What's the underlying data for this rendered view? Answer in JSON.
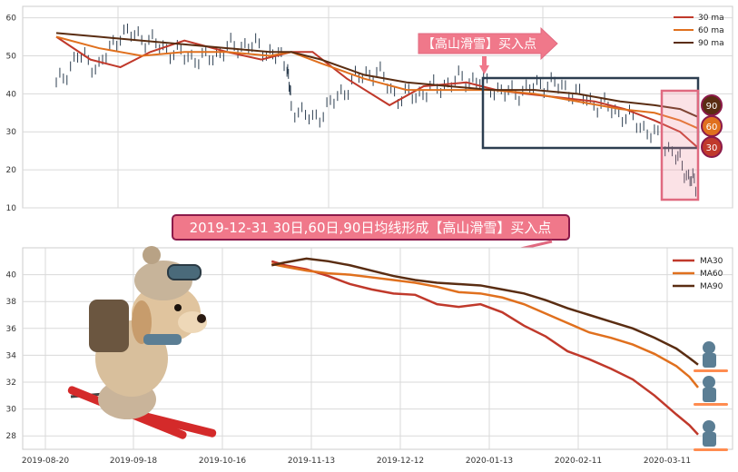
{
  "colors": {
    "ma30": "#c0392b",
    "ma60": "#e0701e",
    "ma90": "#5a2d12",
    "price": "#2c3e50",
    "callout_fill": "#f0788a",
    "callout_border": "#8b1a4a",
    "highlight_box": "#2c3e50",
    "highlight_zone": "#f08a9b",
    "grid": "#d9d9d9"
  },
  "top_panel": {
    "callout_label": "【高山滑雪】买入点",
    "legend": [
      "30 ma",
      "60 ma",
      "90 ma"
    ],
    "badge_labels": [
      "90",
      "60",
      "30"
    ],
    "y_ticks": [
      "10",
      "20",
      "30",
      "40",
      "50",
      "60"
    ]
  },
  "banner": {
    "text": "2019-12-31 30日,60日,90日均线形成【高山滑雪】买入点"
  },
  "bottom_panel": {
    "legend": [
      "MA30",
      "MA60",
      "MA90"
    ],
    "y_ticks": [
      "28",
      "30",
      "32",
      "34",
      "36",
      "38",
      "40"
    ],
    "x_ticks": [
      "2019-08-20",
      "2019-09-18",
      "2019-10-16",
      "2019-11-13",
      "2019-12-12",
      "2020-01-13",
      "2020-02-11",
      "2020-03-11"
    ]
  },
  "chart_data": [
    {
      "type": "line",
      "panel": "top",
      "ylim": [
        10,
        63
      ],
      "x_index_range": [
        0,
        150
      ],
      "series": [
        {
          "name": "30 ma",
          "x": [
            0,
            8,
            15,
            22,
            30,
            40,
            48,
            55,
            60,
            68,
            78,
            86,
            96,
            103,
            110,
            118,
            126,
            133,
            140,
            146,
            150
          ],
          "y": [
            55,
            49,
            47,
            51,
            54,
            51,
            49,
            51,
            51,
            44,
            37,
            42,
            43,
            41,
            40,
            39,
            38,
            36,
            33,
            30,
            26
          ]
        },
        {
          "name": "60 ma",
          "x": [
            0,
            10,
            20,
            30,
            40,
            50,
            55,
            62,
            72,
            82,
            92,
            102,
            112,
            122,
            132,
            140,
            146,
            150
          ],
          "y": [
            55,
            52,
            50,
            51,
            51,
            50,
            51,
            48,
            44,
            41,
            41,
            41,
            40,
            38,
            36,
            35,
            33,
            31
          ]
        },
        {
          "name": "90 ma",
          "x": [
            0,
            10,
            20,
            30,
            40,
            50,
            55,
            62,
            72,
            82,
            92,
            102,
            112,
            122,
            132,
            140,
            146,
            150
          ],
          "y": [
            56,
            55,
            54,
            53,
            52,
            51,
            51,
            49,
            45,
            43,
            42,
            41,
            41,
            40,
            38,
            37,
            36,
            34
          ]
        },
        {
          "name": "price",
          "x": [
            0,
            5,
            10,
            15,
            20,
            25,
            30,
            35,
            40,
            45,
            50,
            54,
            55,
            60,
            65,
            70,
            75,
            80,
            85,
            90,
            95,
            100,
            105,
            110,
            115,
            120,
            125,
            130,
            135,
            140,
            145,
            148,
            150
          ],
          "y": [
            42,
            50,
            47,
            56,
            55,
            52,
            50,
            49,
            52,
            53,
            51,
            48,
            37,
            33,
            38,
            44,
            46,
            39,
            40,
            42,
            44,
            43,
            40,
            41,
            43,
            41,
            38,
            36,
            33,
            29,
            24,
            18,
            16
          ]
        }
      ]
    },
    {
      "type": "line",
      "panel": "bottom",
      "ylim": [
        27,
        42
      ],
      "categories": [
        "2019-08-20",
        "2019-09-18",
        "2019-10-16",
        "2019-11-13",
        "2019-12-12",
        "2020-01-13",
        "2020-02-11",
        "2020-03-11"
      ],
      "x_index_range": [
        0,
        150
      ],
      "series": [
        {
          "name": "MA30",
          "x": [
            52,
            55,
            60,
            65,
            70,
            75,
            80,
            85,
            90,
            95,
            100,
            105,
            110,
            115,
            120,
            125,
            130,
            135,
            140,
            145,
            148,
            150
          ],
          "y": [
            41.0,
            40.7,
            40.4,
            39.9,
            39.3,
            38.9,
            38.6,
            38.5,
            37.8,
            37.6,
            37.8,
            37.2,
            36.2,
            35.4,
            34.3,
            33.7,
            33.0,
            32.2,
            31.0,
            29.6,
            28.8,
            28.1
          ]
        },
        {
          "name": "MA60",
          "x": [
            52,
            55,
            60,
            65,
            70,
            75,
            80,
            85,
            90,
            95,
            100,
            105,
            110,
            115,
            120,
            125,
            130,
            135,
            140,
            145,
            148,
            150
          ],
          "y": [
            40.8,
            40.6,
            40.3,
            40.1,
            40.0,
            39.8,
            39.6,
            39.4,
            39.1,
            38.7,
            38.6,
            38.3,
            37.8,
            37.1,
            36.4,
            35.7,
            35.3,
            34.8,
            34.1,
            33.2,
            32.4,
            31.6
          ]
        },
        {
          "name": "MA90",
          "x": [
            52,
            55,
            60,
            65,
            70,
            75,
            80,
            85,
            90,
            95,
            100,
            105,
            110,
            115,
            120,
            125,
            130,
            135,
            140,
            145,
            148,
            150
          ],
          "y": [
            40.7,
            40.9,
            41.2,
            41.0,
            40.7,
            40.3,
            39.9,
            39.6,
            39.4,
            39.3,
            39.2,
            38.9,
            38.6,
            38.1,
            37.5,
            37.0,
            36.5,
            36.0,
            35.3,
            34.5,
            33.8,
            33.3
          ]
        }
      ]
    }
  ]
}
